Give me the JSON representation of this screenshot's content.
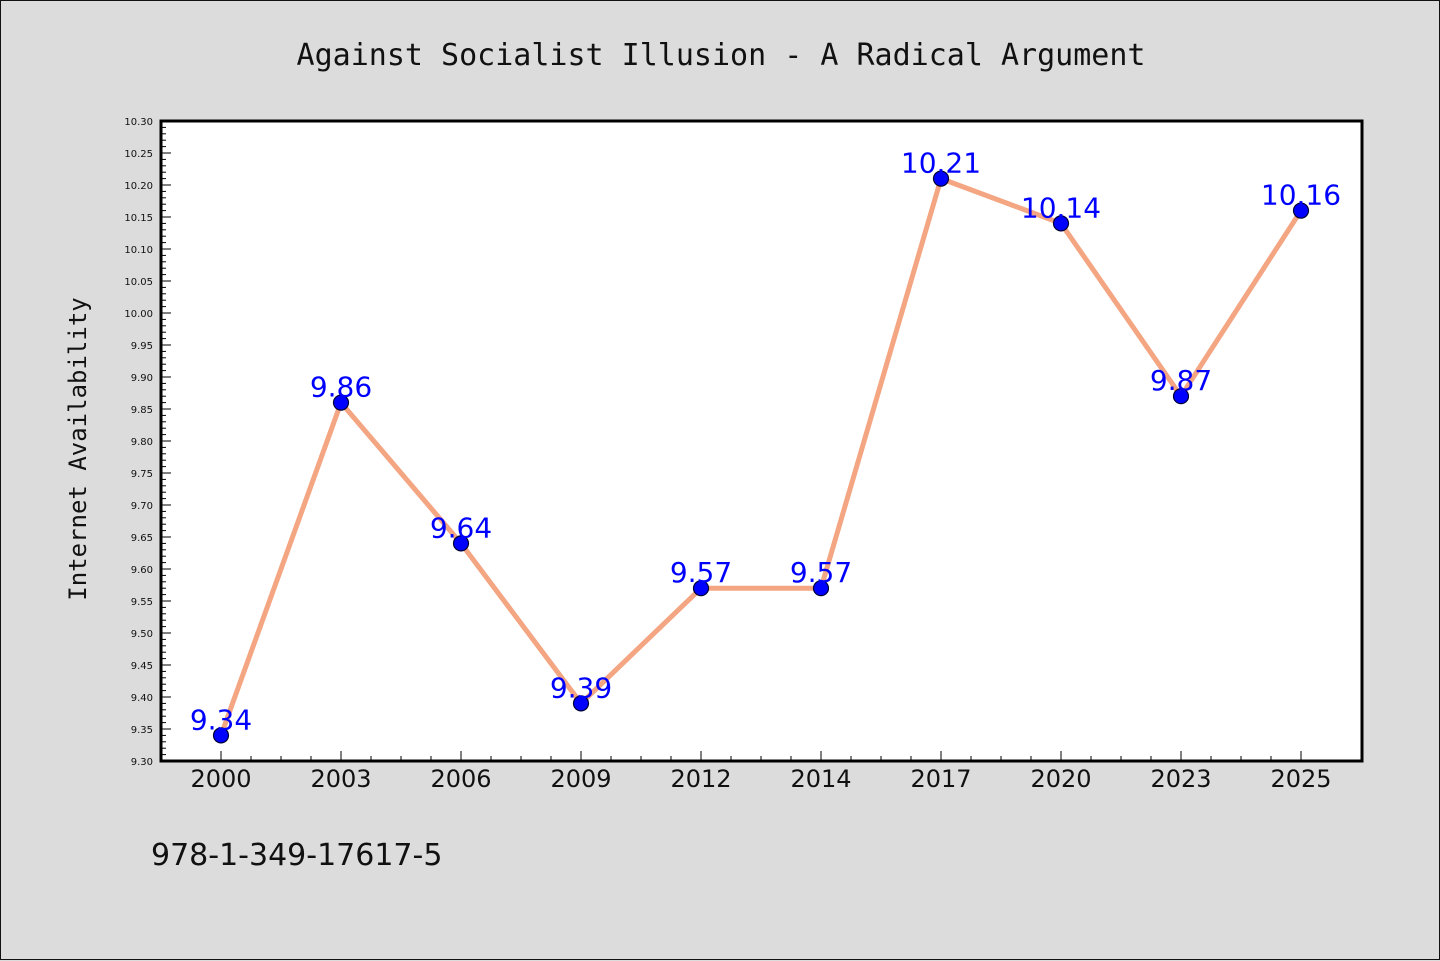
{
  "chart_data": {
    "type": "line",
    "title": "Against Socialist Illusion - A Radical Argument",
    "xlabel": "",
    "ylabel": "Internet Availability",
    "categories": [
      "2000",
      "2003",
      "2006",
      "2009",
      "2012",
      "2014",
      "2017",
      "2020",
      "2023",
      "2025"
    ],
    "series": [
      {
        "values": [
          9.34,
          9.86,
          9.64,
          9.39,
          9.57,
          9.57,
          10.21,
          10.14,
          9.87,
          10.16
        ]
      }
    ],
    "data_labels": [
      "9.34",
      "9.86",
      "9.64",
      "9.39",
      "9.57",
      "9.57",
      "10.21",
      "10.14",
      "9.87",
      "10.16"
    ],
    "ylim": [
      9.3,
      10.3
    ],
    "ytick_step": 0.05,
    "grid": false,
    "legend": "none",
    "colors": {
      "line": "#f4a582",
      "marker_fill": "#0000ff",
      "marker_edge": "#000033",
      "data_label": "#0000ff",
      "background": "#dcdcdc",
      "plot_background": "#ffffff"
    }
  },
  "footer": {
    "isbn": "978-1-349-17617-5"
  }
}
